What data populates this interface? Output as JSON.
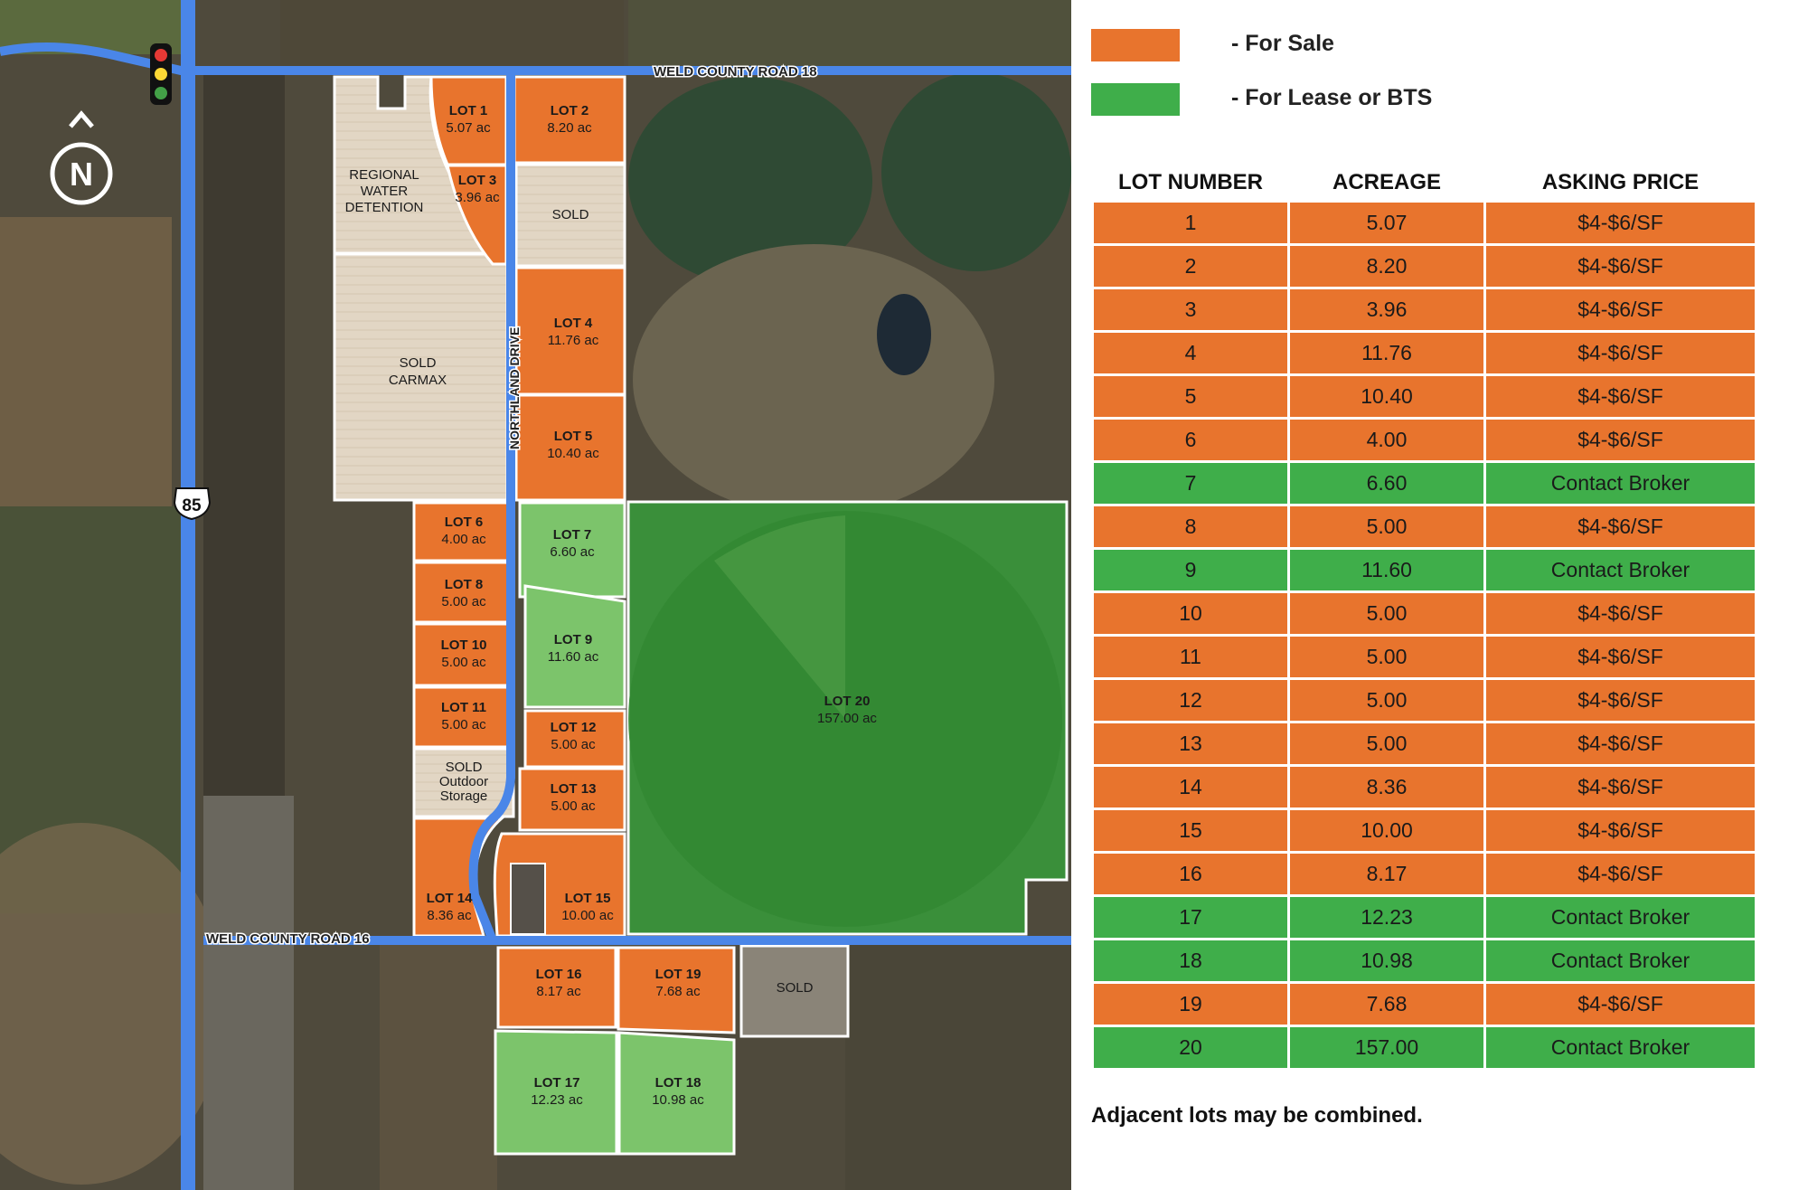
{
  "colors": {
    "for_sale": "#e8742d",
    "for_lease": "#3fae4a",
    "sold": "#e2d6c4",
    "road": "#4a86e8",
    "field_dark": "#3f4a33",
    "lot20": "#3a8f3a"
  },
  "map": {
    "roads": {
      "north": "WELD COUNTY ROAD 18",
      "south": "WELD COUNTY ROAD 16",
      "internal": "NORTHLAND DRIVE",
      "highway": "85"
    },
    "north_arrow": "N",
    "traffic_light_icon": "traffic-light-icon",
    "compass_icon": "north-arrow-icon",
    "parcels": [
      {
        "id": "lot1",
        "name": "LOT 1",
        "area": "5.07 ac",
        "status": "sale"
      },
      {
        "id": "lot2",
        "name": "LOT 2",
        "area": "8.20 ac",
        "status": "sale"
      },
      {
        "id": "lot3",
        "name": "LOT 3",
        "area": "3.96 ac",
        "status": "sale"
      },
      {
        "id": "lot4",
        "name": "LOT 4",
        "area": "11.76 ac",
        "status": "sale"
      },
      {
        "id": "lot5",
        "name": "LOT 5",
        "area": "10.40 ac",
        "status": "sale"
      },
      {
        "id": "lot6",
        "name": "LOT 6",
        "area": "4.00 ac",
        "status": "sale"
      },
      {
        "id": "lot7",
        "name": "LOT 7",
        "area": "6.60 ac",
        "status": "lease"
      },
      {
        "id": "lot8",
        "name": "LOT 8",
        "area": "5.00 ac",
        "status": "sale"
      },
      {
        "id": "lot9",
        "name": "LOT 9",
        "area": "11.60 ac",
        "status": "lease"
      },
      {
        "id": "lot10",
        "name": "LOT 10",
        "area": "5.00 ac",
        "status": "sale"
      },
      {
        "id": "lot11",
        "name": "LOT 11",
        "area": "5.00 ac",
        "status": "sale"
      },
      {
        "id": "lot12",
        "name": "LOT 12",
        "area": "5.00 ac",
        "status": "sale"
      },
      {
        "id": "lot13",
        "name": "LOT 13",
        "area": "5.00 ac",
        "status": "sale"
      },
      {
        "id": "lot14",
        "name": "LOT 14",
        "area": "8.36 ac",
        "status": "sale"
      },
      {
        "id": "lot15",
        "name": "LOT 15",
        "area": "10.00 ac",
        "status": "sale"
      },
      {
        "id": "lot16",
        "name": "LOT 16",
        "area": "8.17 ac",
        "status": "sale"
      },
      {
        "id": "lot17",
        "name": "LOT 17",
        "area": "12.23 ac",
        "status": "lease"
      },
      {
        "id": "lot18",
        "name": "LOT 18",
        "area": "10.98 ac",
        "status": "lease"
      },
      {
        "id": "lot19",
        "name": "LOT 19",
        "area": "7.68 ac",
        "status": "sale"
      },
      {
        "id": "lot20",
        "name": "LOT 20",
        "area": "157.00 ac",
        "status": "lease"
      }
    ],
    "special_labels": {
      "detention": [
        "REGIONAL",
        "WATER",
        "DETENTION"
      ],
      "carmax": [
        "SOLD",
        "CARMAX"
      ],
      "sold_ne": "SOLD",
      "sold_outdoor": [
        "SOLD",
        "Outdoor",
        "Storage"
      ],
      "sold_se": "SOLD"
    }
  },
  "legend": [
    {
      "label": "- For Sale",
      "color": "#e8742d"
    },
    {
      "label": "- For Lease or BTS",
      "color": "#3fae4a"
    }
  ],
  "table": {
    "headers": [
      "LOT NUMBER",
      "ACREAGE",
      "ASKING PRICE"
    ],
    "rows": [
      {
        "lot": "1",
        "acreage": "5.07",
        "price": "$4-$6/SF",
        "status": "sale"
      },
      {
        "lot": "2",
        "acreage": "8.20",
        "price": "$4-$6/SF",
        "status": "sale"
      },
      {
        "lot": "3",
        "acreage": "3.96",
        "price": "$4-$6/SF",
        "status": "sale"
      },
      {
        "lot": "4",
        "acreage": "11.76",
        "price": "$4-$6/SF",
        "status": "sale"
      },
      {
        "lot": "5",
        "acreage": "10.40",
        "price": "$4-$6/SF",
        "status": "sale"
      },
      {
        "lot": "6",
        "acreage": "4.00",
        "price": "$4-$6/SF",
        "status": "sale"
      },
      {
        "lot": "7",
        "acreage": "6.60",
        "price": "Contact Broker",
        "status": "lease"
      },
      {
        "lot": "8",
        "acreage": "5.00",
        "price": "$4-$6/SF",
        "status": "sale"
      },
      {
        "lot": "9",
        "acreage": "11.60",
        "price": "Contact Broker",
        "status": "lease"
      },
      {
        "lot": "10",
        "acreage": "5.00",
        "price": "$4-$6/SF",
        "status": "sale"
      },
      {
        "lot": "11",
        "acreage": "5.00",
        "price": "$4-$6/SF",
        "status": "sale"
      },
      {
        "lot": "12",
        "acreage": "5.00",
        "price": "$4-$6/SF",
        "status": "sale"
      },
      {
        "lot": "13",
        "acreage": "5.00",
        "price": "$4-$6/SF",
        "status": "sale"
      },
      {
        "lot": "14",
        "acreage": "8.36",
        "price": "$4-$6/SF",
        "status": "sale"
      },
      {
        "lot": "15",
        "acreage": "10.00",
        "price": "$4-$6/SF",
        "status": "sale"
      },
      {
        "lot": "16",
        "acreage": "8.17",
        "price": "$4-$6/SF",
        "status": "sale"
      },
      {
        "lot": "17",
        "acreage": "12.23",
        "price": "Contact Broker",
        "status": "lease"
      },
      {
        "lot": "18",
        "acreage": "10.98",
        "price": "Contact Broker",
        "status": "lease"
      },
      {
        "lot": "19",
        "acreage": "7.68",
        "price": "$4-$6/SF",
        "status": "sale"
      },
      {
        "lot": "20",
        "acreage": "157.00",
        "price": "Contact Broker",
        "status": "lease"
      }
    ]
  },
  "footnote": "Adjacent lots may be combined."
}
